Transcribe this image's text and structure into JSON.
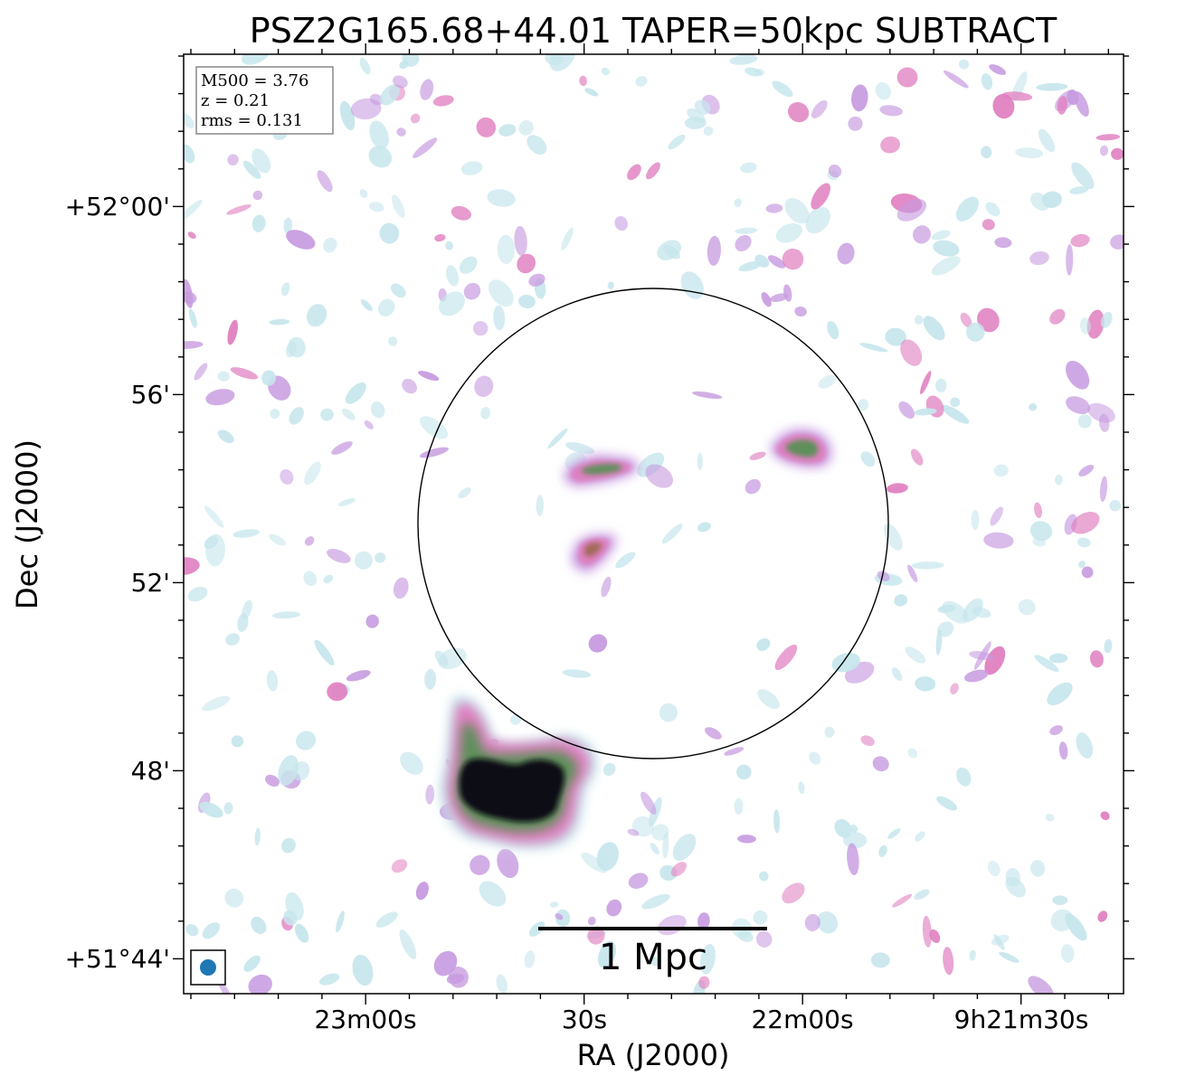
{
  "chart_data": {
    "type": "heatmap",
    "title": "PSZ2G165.68+44.01 TAPER=50kpc SUBTRACT",
    "xlabel": "RA (J2000)",
    "ylabel": "Dec (J2000)",
    "x_ticks": [
      "23m00s",
      "30s",
      "22m00s",
      "9h21m30s"
    ],
    "y_ticks": [
      "+52°00'",
      "56'",
      "52'",
      "48'",
      "+51°44'"
    ],
    "info_box": [
      "M500 = 3.76",
      "z = 0.21",
      "rms = 0.131"
    ],
    "scale_bar_label": "1 Mpc",
    "colormap": "cubehelix (light blue → pink → green → black)",
    "colors": {
      "low": "#c6e6ec",
      "mid": "#c79be0",
      "high": "#e07fc0",
      "green": "#5f8f5a",
      "peak": "#0b0b12",
      "beam": "#1f77b4"
    },
    "sources": [
      {
        "name": "bright extended source",
        "ra": "9h22m41s",
        "dec": "+51°47'55\""
      },
      {
        "name": "central elongated source",
        "ra": "9h22m36s",
        "dec": "+51°54'30\""
      },
      {
        "name": "east-west compact source",
        "ra": "9h21m59s",
        "dec": "+51°54'55\""
      },
      {
        "name": "southern compact source",
        "ra": "9h22m30s",
        "dec": "+51°52'45\""
      }
    ],
    "circle": {
      "center_ra": "9h22m20s",
      "center_dec": "+51°53'20\"",
      "radius_arcmin": 5.0
    }
  }
}
